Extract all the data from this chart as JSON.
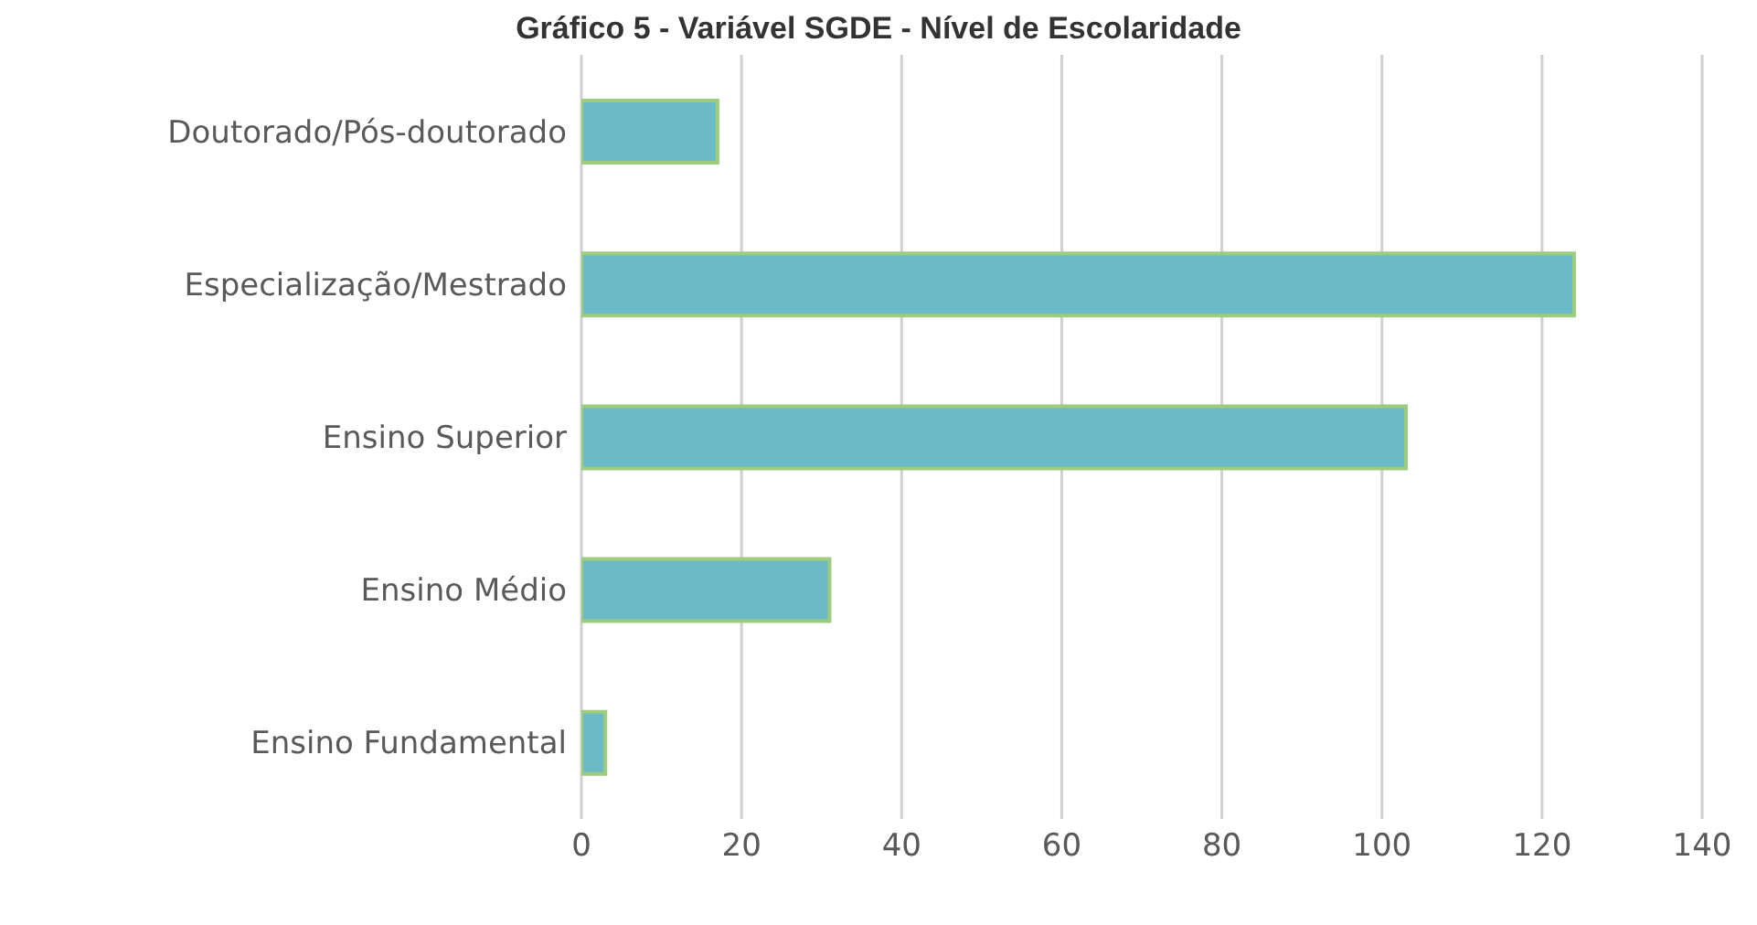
{
  "chart_data": {
    "type": "bar",
    "orientation": "horizontal",
    "title": "Gráfico 5 - Variável SGDE - Nível de Escolaridade",
    "categories": [
      "Doutorado/Pós-doutorado",
      "Especialização/Mestrado",
      "Ensino Superior",
      "Ensino Médio",
      "Ensino Fundamental"
    ],
    "values": [
      17,
      124,
      103,
      31,
      3
    ],
    "color": "#6bbac8",
    "xlim": [
      0,
      140
    ],
    "xticks": [
      0,
      20,
      40,
      60,
      80,
      100,
      120,
      140
    ],
    "grid": "x"
  }
}
